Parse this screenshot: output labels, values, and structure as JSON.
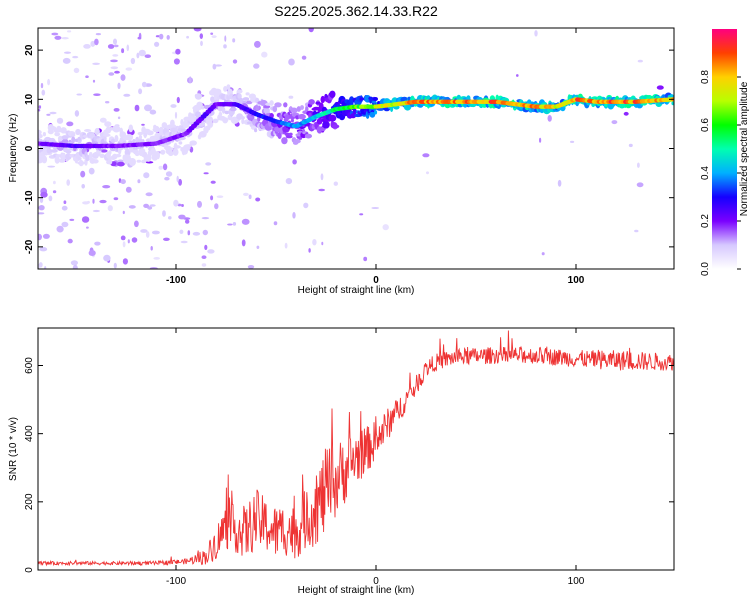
{
  "title": "S225.2025.362.14.33.R22",
  "chart_data": [
    {
      "type": "heatmap",
      "name": "spectrogram",
      "xlabel": "Height of straight line (km)",
      "ylabel": "Frequency (Hz)",
      "xlim": [
        -169,
        149
      ],
      "ylim": [
        -24.5,
        24.5
      ],
      "xticks": [
        -100,
        0,
        100
      ],
      "xtick_labels": [
        "-100",
        "0",
        "100"
      ],
      "yticks": [
        -20,
        -10,
        0,
        10,
        20
      ],
      "ytick_labels": [
        "-20",
        "-10",
        "0",
        "10",
        "20"
      ],
      "ridge": {
        "x": [
          -169,
          -150,
          -130,
          -110,
          -95,
          -85,
          -80,
          -70,
          -60,
          -50,
          -40,
          -30,
          -20,
          -10,
          0,
          10,
          20,
          40,
          60,
          80,
          90,
          100,
          110,
          130,
          149
        ],
        "frequency": [
          1,
          0.5,
          0.5,
          1,
          3,
          7,
          9,
          9,
          7,
          5.5,
          4.5,
          6.5,
          8,
          8.5,
          8.5,
          9,
          9.5,
          9.5,
          9.5,
          8.5,
          8.5,
          10,
          9.5,
          9.5,
          10
        ],
        "amplitude": [
          0.2,
          0.25,
          0.2,
          0.2,
          0.2,
          0.25,
          0.2,
          0.25,
          0.3,
          0.35,
          0.4,
          0.45,
          0.55,
          0.65,
          0.72,
          0.8,
          0.88,
          0.88,
          0.9,
          0.85,
          0.8,
          0.9,
          0.9,
          0.9,
          0.85
        ]
      },
      "colorbar": {
        "label": "Normalized spectral amplitude",
        "range": [
          0,
          1
        ],
        "ticks": [
          0.0,
          0.2,
          0.4,
          0.6,
          0.8
        ],
        "tick_labels": [
          "0.0",
          "0.2",
          "0.4",
          "0.6",
          "0.8"
        ]
      }
    },
    {
      "type": "line",
      "name": "snr",
      "xlabel": "Height of straight line (km)",
      "ylabel": "SNR (10 * v/v)",
      "xlim": [
        -169,
        149
      ],
      "ylim": [
        0,
        710
      ],
      "xticks": [
        -100,
        0,
        100
      ],
      "xtick_labels": [
        "-100",
        "0",
        "100"
      ],
      "yticks": [
        0,
        200,
        400,
        600
      ],
      "ytick_labels": [
        "0",
        "200",
        "400",
        "600"
      ],
      "color": "#ee3333",
      "series": [
        {
          "name": "SNR",
          "x": [
            -169,
            -150,
            -130,
            -110,
            -95,
            -85,
            -80,
            -75,
            -70,
            -65,
            -60,
            -55,
            -50,
            -45,
            -40,
            -35,
            -30,
            -25,
            -20,
            -15,
            -10,
            -5,
            0,
            5,
            10,
            15,
            20,
            25,
            30,
            40,
            60,
            80,
            100,
            120,
            149
          ],
          "y": [
            20,
            20,
            20,
            20,
            25,
            40,
            80,
            130,
            120,
            110,
            150,
            130,
            110,
            120,
            110,
            150,
            180,
            230,
            260,
            300,
            330,
            350,
            380,
            420,
            460,
            500,
            540,
            590,
            610,
            625,
            630,
            630,
            620,
            615,
            610
          ],
          "noise": [
            5,
            5,
            5,
            6,
            8,
            25,
            50,
            70,
            70,
            80,
            90,
            80,
            80,
            80,
            80,
            90,
            110,
            130,
            110,
            100,
            80,
            70,
            60,
            50,
            40,
            35,
            30,
            25,
            25,
            25,
            25,
            25,
            25,
            30,
            25
          ]
        }
      ]
    }
  ]
}
